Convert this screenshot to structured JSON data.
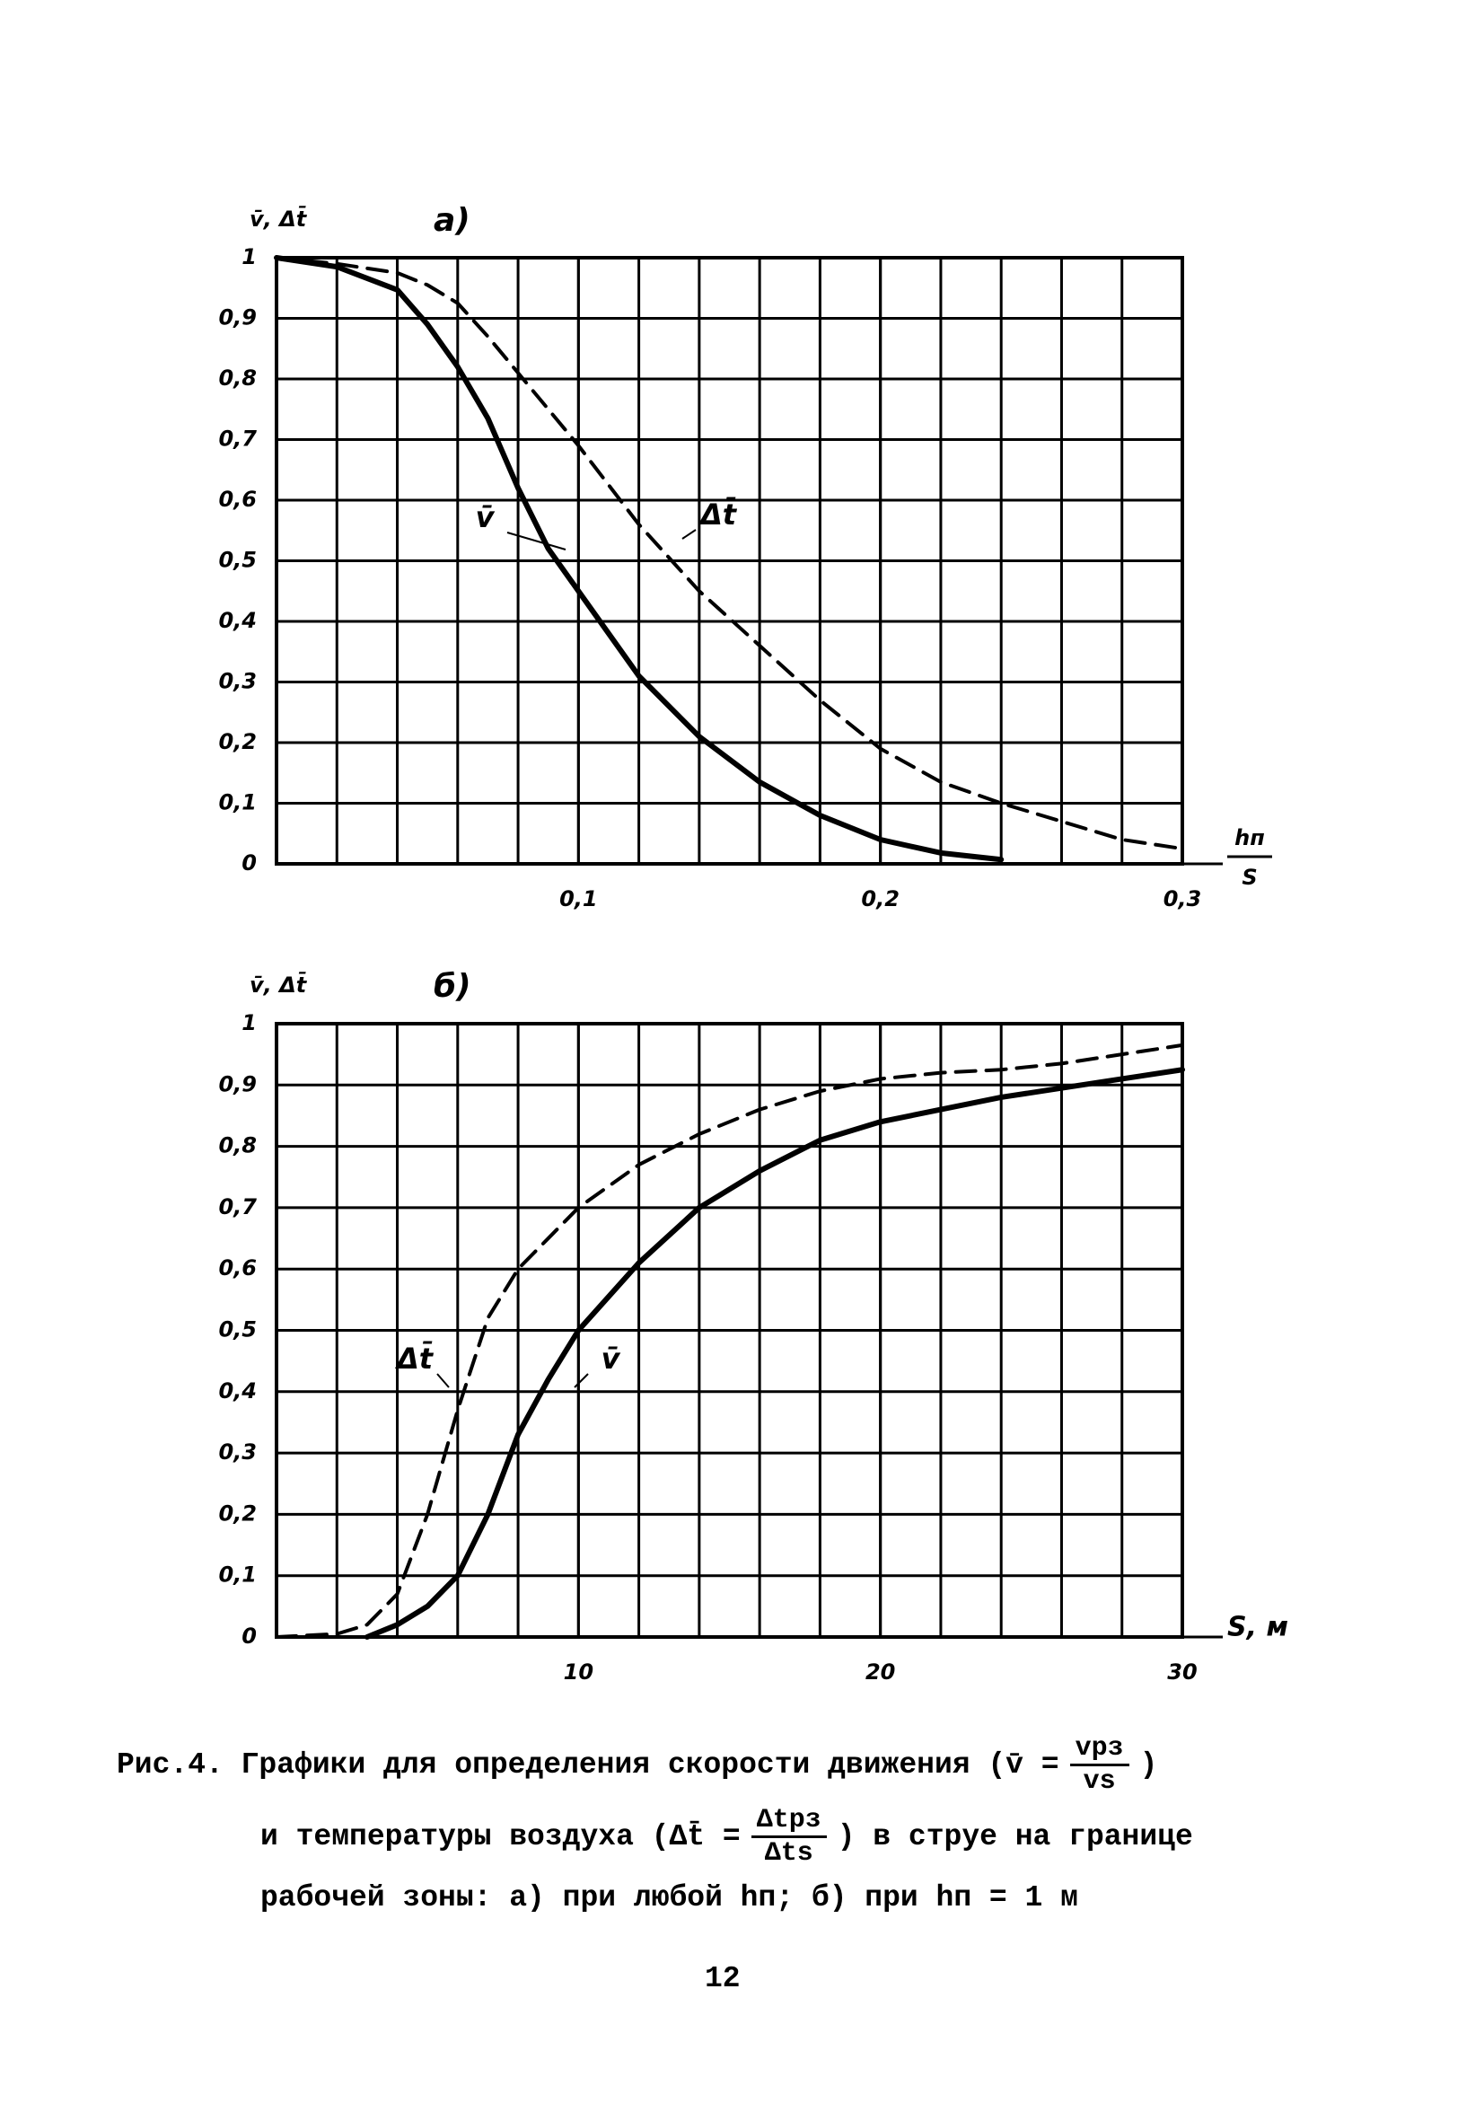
{
  "chart_data": [
    {
      "type": "line",
      "title": "а)",
      "y_label": "v̄, Δt̄",
      "x_label_numerator": "hп",
      "x_label_denominator": "S",
      "xlim": [
        0,
        0.3
      ],
      "ylim": [
        0,
        1
      ],
      "xticks": [
        {
          "value": 0.1,
          "label": "0,1"
        },
        {
          "value": 0.2,
          "label": "0,2"
        },
        {
          "value": 0.3,
          "label": "0,3"
        }
      ],
      "yticks": [
        0,
        {
          "value": 0.1,
          "label": "0,1"
        },
        {
          "value": 0.2,
          "label": "0,2"
        },
        {
          "value": 0.3,
          "label": "0,3"
        },
        {
          "value": 0.4,
          "label": "0,4"
        },
        {
          "value": 0.5,
          "label": "0,5"
        },
        {
          "value": 0.6,
          "label": "0,6"
        },
        {
          "value": 0.7,
          "label": "0,7"
        },
        {
          "value": 0.8,
          "label": "0,8"
        },
        {
          "value": 0.9,
          "label": "0,9"
        },
        1
      ],
      "grid": true,
      "x": [
        0,
        0.02,
        0.04,
        0.05,
        0.06,
        0.07,
        0.08,
        0.09,
        0.1,
        0.12,
        0.14,
        0.16,
        0.18,
        0.2,
        0.22,
        0.24,
        0.26,
        0.28,
        0.3
      ],
      "series": [
        {
          "name": "v̄",
          "color": "#000000",
          "dashed": false,
          "values": [
            1,
            0.985,
            0.947,
            0.89,
            0.82,
            0.735,
            0.62,
            0.52,
            0.45,
            0.31,
            0.21,
            0.135,
            0.08,
            0.04,
            0.018,
            0.007,
            null,
            null,
            null
          ]
        },
        {
          "name": "Δt̄",
          "color": "#000000",
          "dashed": true,
          "values": [
            1,
            0.99,
            0.975,
            0.955,
            0.925,
            0.87,
            0.81,
            0.75,
            0.69,
            0.56,
            0.45,
            0.36,
            0.27,
            0.19,
            0.135,
            0.1,
            0.07,
            0.04,
            0.025
          ]
        }
      ]
    },
    {
      "type": "line",
      "title": "б)",
      "y_label": "v̄, Δt̄",
      "x_label": "S, м",
      "xlim": [
        0,
        30
      ],
      "ylim": [
        0,
        1
      ],
      "xticks": [
        10,
        20,
        30
      ],
      "yticks": [
        0,
        {
          "value": 0.1,
          "label": "0,1"
        },
        {
          "value": 0.2,
          "label": "0,2"
        },
        {
          "value": 0.3,
          "label": "0,3"
        },
        {
          "value": 0.4,
          "label": "0,4"
        },
        {
          "value": 0.5,
          "label": "0,5"
        },
        {
          "value": 0.6,
          "label": "0,6"
        },
        {
          "value": 0.7,
          "label": "0,7"
        },
        {
          "value": 0.8,
          "label": "0,8"
        },
        {
          "value": 0.9,
          "label": "0,9"
        },
        1
      ],
      "grid": true,
      "x": [
        0,
        2,
        3,
        4,
        5,
        6,
        7,
        8,
        9,
        10,
        12,
        14,
        16,
        18,
        20,
        22,
        24,
        26,
        28,
        30
      ],
      "series": [
        {
          "name": "v̄",
          "color": "#000000",
          "dashed": false,
          "values": [
            null,
            null,
            0,
            0.02,
            0.05,
            0.1,
            0.2,
            0.33,
            0.42,
            0.5,
            0.61,
            0.7,
            0.76,
            0.81,
            0.84,
            0.86,
            0.88,
            0.895,
            0.91,
            0.925
          ]
        },
        {
          "name": "Δt̄",
          "color": "#000000",
          "dashed": true,
          "values": [
            0,
            0.005,
            0.02,
            0.07,
            0.2,
            0.37,
            0.52,
            0.6,
            0.65,
            0.7,
            0.77,
            0.82,
            0.86,
            0.89,
            0.91,
            0.92,
            0.925,
            0.935,
            0.95,
            0.965
          ]
        }
      ]
    }
  ],
  "caption": {
    "line1": "Рис.4. Графики для определения скорости движения (v̄ =",
    "formula1": {
      "numerator": "vрз",
      "denominator": "vs"
    },
    "line1_end": ")",
    "line2": "и температуры воздуха (Δt̄ =",
    "formula2": {
      "numerator": "Δtрз",
      "denominator": "Δts"
    },
    "line2_end": ") в струе на границе",
    "line3": "рабочей зоны: а) при любой hп; б) при hп = 1 м"
  },
  "page_number": "12"
}
